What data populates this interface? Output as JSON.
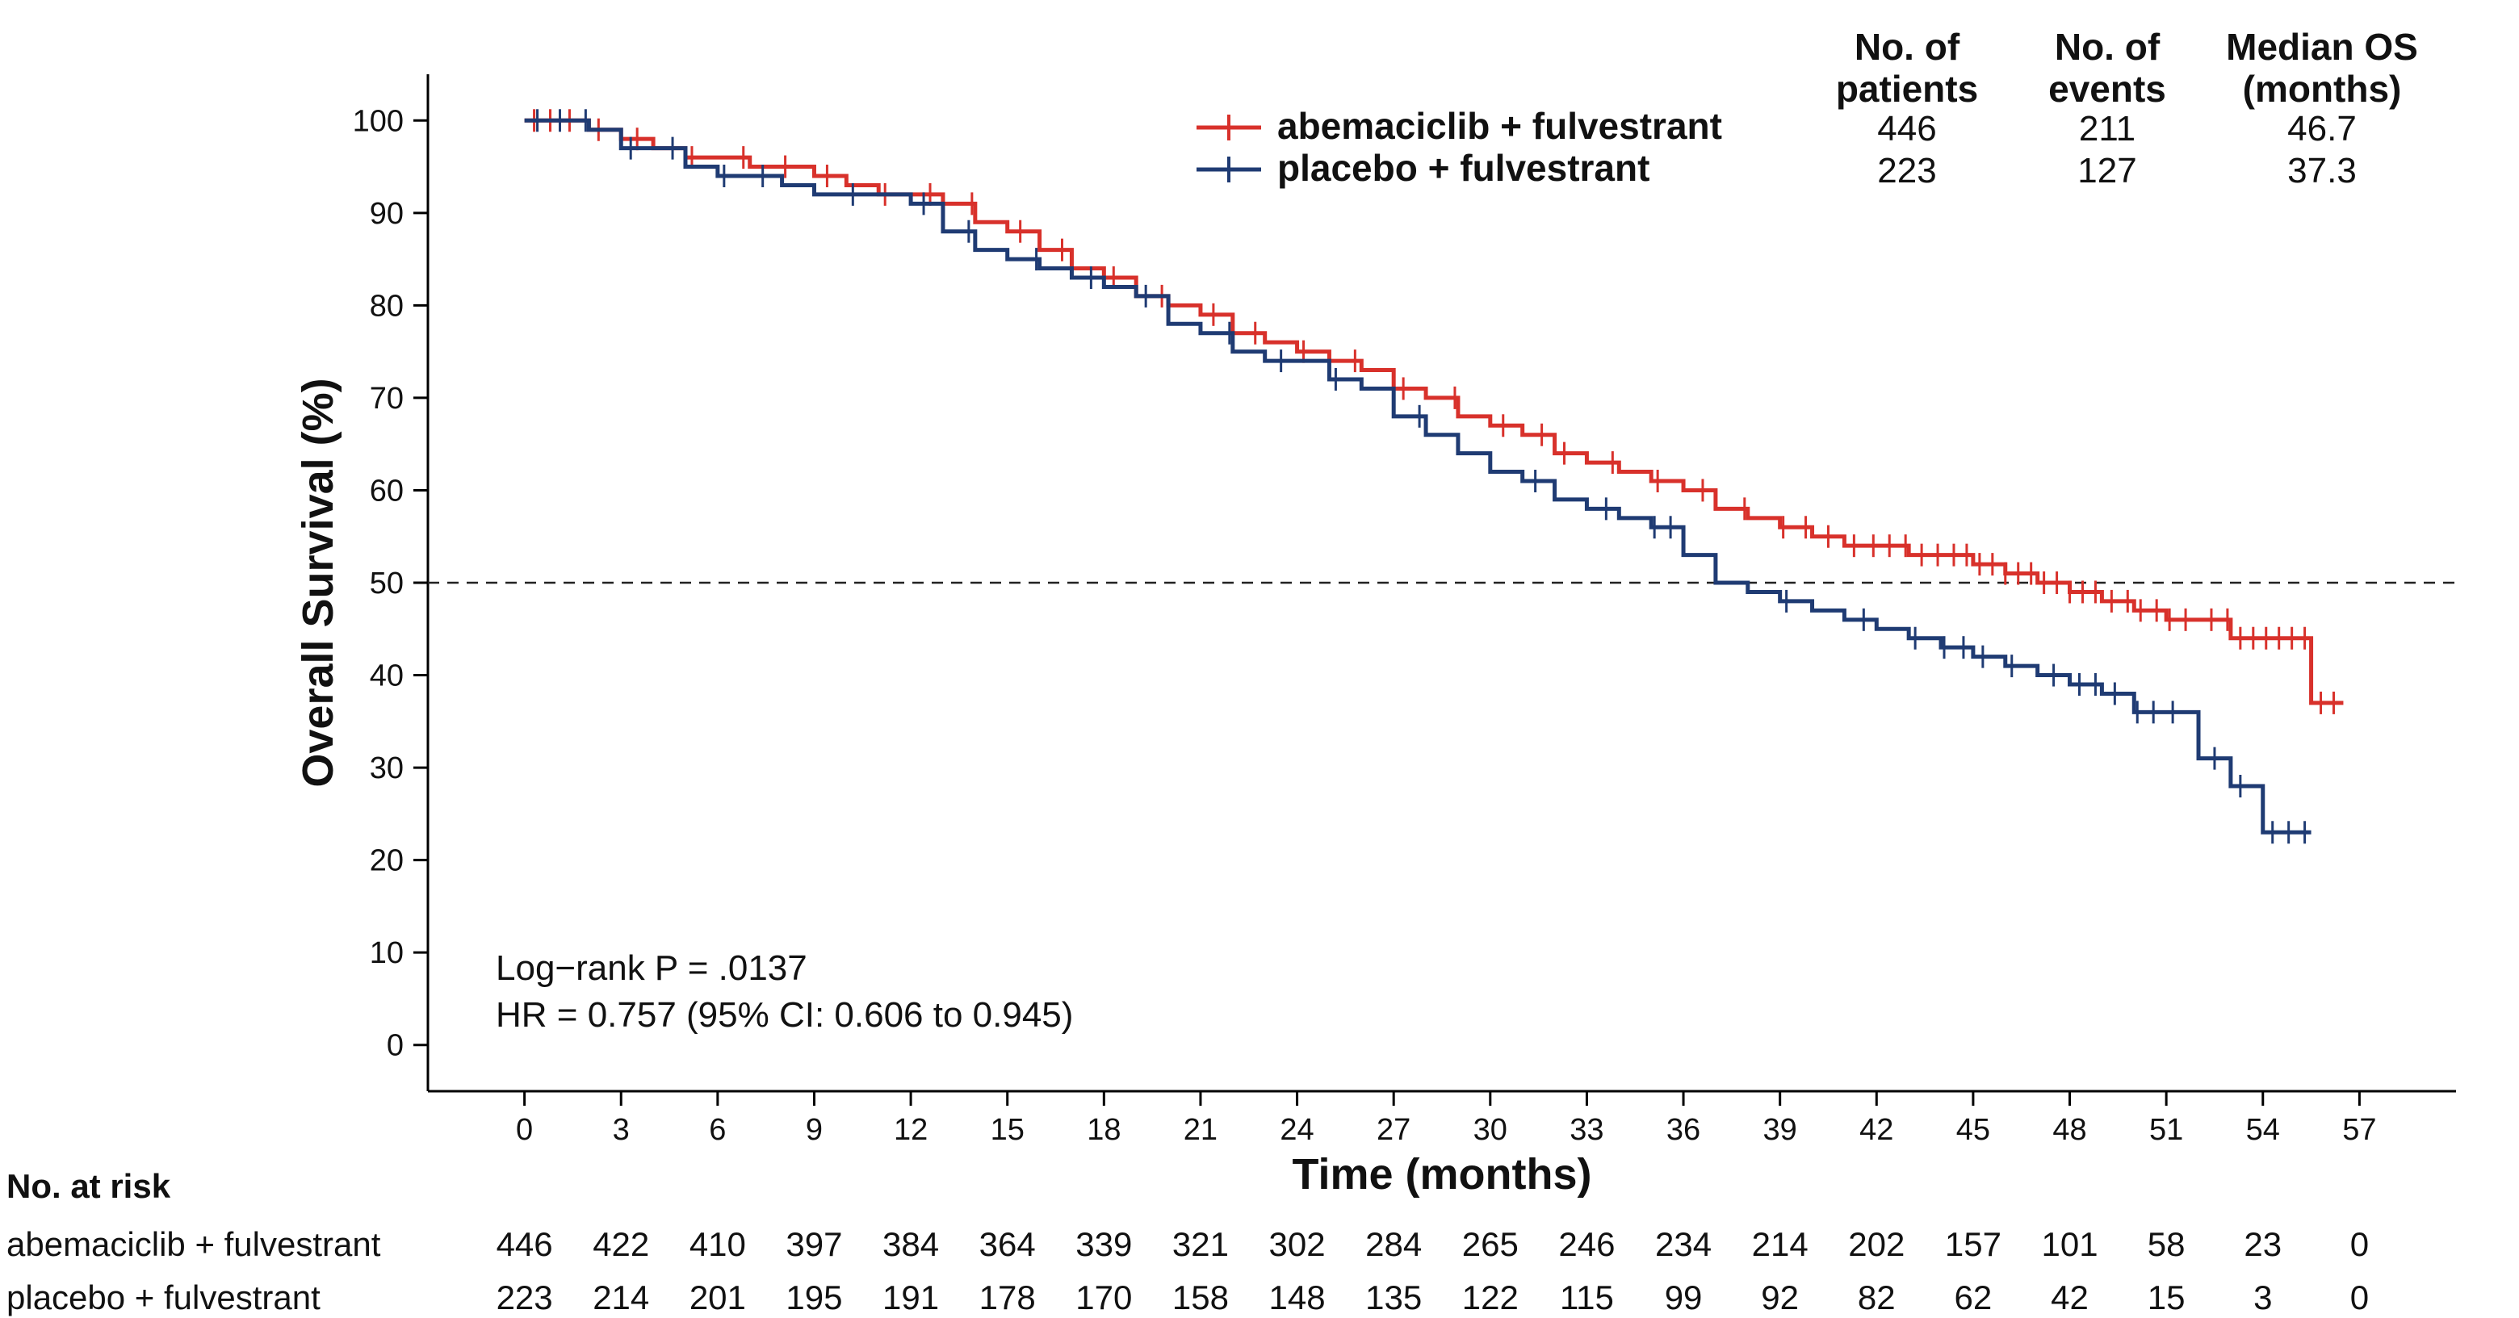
{
  "chart_data": {
    "type": "line",
    "xlabel": "Time (months)",
    "ylabel": "Overall Survival (%)",
    "xlim": [
      -3,
      60
    ],
    "ylim": [
      -5,
      105
    ],
    "x_ticks": [
      "0",
      "3",
      "6",
      "9",
      "12",
      "15",
      "18",
      "21",
      "24",
      "27",
      "30",
      "33",
      "36",
      "39",
      "42",
      "45",
      "48",
      "51",
      "54",
      "57"
    ],
    "y_ticks": [
      "0",
      "10",
      "20",
      "30",
      "40",
      "50",
      "60",
      "70",
      "80",
      "90",
      "100"
    ],
    "reference_line_y": 50,
    "legend_position": "top-right",
    "series": [
      {
        "name": "abemaciclib + fulvestrant",
        "color": "#d8312b",
        "points": [
          [
            0,
            100
          ],
          [
            1,
            100
          ],
          [
            2,
            99
          ],
          [
            3,
            98
          ],
          [
            4,
            97
          ],
          [
            5,
            96
          ],
          [
            6,
            96
          ],
          [
            7,
            95
          ],
          [
            8,
            95
          ],
          [
            9,
            94
          ],
          [
            10,
            93
          ],
          [
            11,
            92
          ],
          [
            12,
            92
          ],
          [
            13,
            91
          ],
          [
            14,
            89
          ],
          [
            15,
            88
          ],
          [
            16,
            86
          ],
          [
            17,
            84
          ],
          [
            18,
            83
          ],
          [
            19,
            81
          ],
          [
            20,
            80
          ],
          [
            21,
            79
          ],
          [
            22,
            77
          ],
          [
            23,
            76
          ],
          [
            24,
            75
          ],
          [
            25,
            74
          ],
          [
            26,
            73
          ],
          [
            27,
            71
          ],
          [
            28,
            70
          ],
          [
            29,
            68
          ],
          [
            30,
            67
          ],
          [
            31,
            66
          ],
          [
            32,
            64
          ],
          [
            33,
            63
          ],
          [
            34,
            62
          ],
          [
            35,
            61
          ],
          [
            36,
            60
          ],
          [
            37,
            58
          ],
          [
            38,
            57
          ],
          [
            39,
            56
          ],
          [
            40,
            55
          ],
          [
            41,
            54
          ],
          [
            42,
            54
          ],
          [
            43,
            53
          ],
          [
            44,
            53
          ],
          [
            45,
            52
          ],
          [
            46,
            51
          ],
          [
            47,
            50
          ],
          [
            48,
            49
          ],
          [
            49,
            48
          ],
          [
            50,
            47
          ],
          [
            51,
            46
          ],
          [
            52,
            46
          ],
          [
            53,
            44
          ],
          [
            54,
            44
          ],
          [
            55.5,
            44
          ],
          [
            55.5,
            37
          ],
          [
            56.5,
            37
          ]
        ],
        "censor_x": [
          0.3,
          0.8,
          1.4,
          2.3,
          3.5,
          5.2,
          6.8,
          8.1,
          9.4,
          11.2,
          12.6,
          13.9,
          15.4,
          16.7,
          18.3,
          19.8,
          21.4,
          22.7,
          24.2,
          25.8,
          27.3,
          28.9,
          30.4,
          31.6,
          32.3,
          33.8,
          35.2,
          36.6,
          37.9,
          39.1,
          39.8,
          40.5,
          41.3,
          41.9,
          42.4,
          42.9,
          43.4,
          43.9,
          44.4,
          44.8,
          45.2,
          45.6,
          46.0,
          46.4,
          46.8,
          47.2,
          47.6,
          48.0,
          48.4,
          48.8,
          49.3,
          49.8,
          50.2,
          50.7,
          51.1,
          51.6,
          52.4,
          52.9,
          53.3,
          53.7,
          54.1,
          54.5,
          54.9,
          55.3,
          55.8,
          56.2
        ]
      },
      {
        "name": "placebo + fulvestrant",
        "color": "#1f3b73",
        "points": [
          [
            0,
            100
          ],
          [
            1,
            100
          ],
          [
            2,
            99
          ],
          [
            3,
            97
          ],
          [
            4,
            97
          ],
          [
            5,
            95
          ],
          [
            6,
            94
          ],
          [
            7,
            94
          ],
          [
            8,
            93
          ],
          [
            9,
            92
          ],
          [
            11,
            92
          ],
          [
            12,
            91
          ],
          [
            13,
            88
          ],
          [
            14,
            86
          ],
          [
            15,
            85
          ],
          [
            16,
            84
          ],
          [
            17,
            83
          ],
          [
            18,
            82
          ],
          [
            19,
            81
          ],
          [
            20,
            78
          ],
          [
            21,
            77
          ],
          [
            22,
            75
          ],
          [
            23,
            74
          ],
          [
            24,
            74
          ],
          [
            25,
            72
          ],
          [
            26,
            71
          ],
          [
            27,
            68
          ],
          [
            28,
            66
          ],
          [
            29,
            64
          ],
          [
            30,
            62
          ],
          [
            31,
            61
          ],
          [
            32,
            59
          ],
          [
            33,
            58
          ],
          [
            34,
            57
          ],
          [
            35,
            56
          ],
          [
            36,
            53
          ],
          [
            37,
            50
          ],
          [
            38,
            49
          ],
          [
            39,
            48
          ],
          [
            40,
            47
          ],
          [
            41,
            46
          ],
          [
            42,
            45
          ],
          [
            43,
            44
          ],
          [
            44,
            43
          ],
          [
            45,
            42
          ],
          [
            46,
            41
          ],
          [
            47,
            40
          ],
          [
            48,
            39
          ],
          [
            49,
            38
          ],
          [
            50,
            36
          ],
          [
            51,
            36
          ],
          [
            52,
            31
          ],
          [
            53,
            31
          ],
          [
            53,
            28
          ],
          [
            54,
            28
          ],
          [
            54,
            23
          ],
          [
            55.5,
            23
          ]
        ],
        "censor_x": [
          0.4,
          1.1,
          1.9,
          3.3,
          4.6,
          6.2,
          7.4,
          10.2,
          12.4,
          13.8,
          15.9,
          17.6,
          19.3,
          21.9,
          23.5,
          25.2,
          27.8,
          31.4,
          33.6,
          35.1,
          35.6,
          39.2,
          41.6,
          43.2,
          44.1,
          44.7,
          45.3,
          46.2,
          47.5,
          48.3,
          48.8,
          49.4,
          50.1,
          50.6,
          51.2,
          52.5,
          53.3,
          54.3,
          54.8,
          55.3
        ]
      }
    ],
    "table_headers": [
      "No. of patients",
      "No. of events",
      "Median OS (months)"
    ],
    "table_header_lines": [
      [
        "No. of",
        "patients"
      ],
      [
        "No. of",
        "events"
      ],
      [
        "Median OS",
        "(months)"
      ]
    ],
    "table_rows": [
      {
        "series": "abemaciclib + fulvestrant",
        "patients": "446",
        "events": "211",
        "median_os": "46.7"
      },
      {
        "series": "placebo + fulvestrant",
        "patients": "223",
        "events": "127",
        "median_os": "37.3"
      }
    ],
    "annotations": [
      "Log−rank P = .0137",
      "HR = 0.757 (95% CI: 0.606 to 0.945)"
    ],
    "risk_table": {
      "title": "No. at risk",
      "rows": [
        {
          "label": "abemaciclib + fulvestrant",
          "values": [
            "446",
            "422",
            "410",
            "397",
            "384",
            "364",
            "339",
            "321",
            "302",
            "284",
            "265",
            "246",
            "234",
            "214",
            "202",
            "157",
            "101",
            "58",
            "23",
            "0"
          ]
        },
        {
          "label": "placebo + fulvestrant",
          "values": [
            "223",
            "214",
            "201",
            "195",
            "191",
            "178",
            "170",
            "158",
            "148",
            "135",
            "122",
            "115",
            "99",
            "92",
            "82",
            "62",
            "42",
            "15",
            "3",
            "0"
          ]
        }
      ]
    }
  }
}
